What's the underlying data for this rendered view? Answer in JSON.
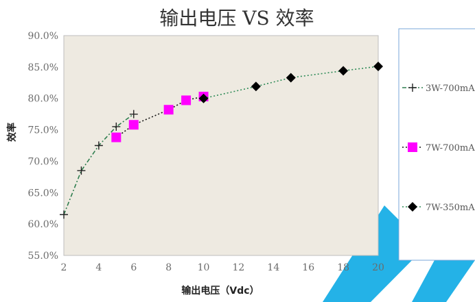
{
  "chart_data": {
    "type": "line",
    "title": "输出电压 VS 效率",
    "xlabel": "输出电压（Vdc）",
    "ylabel": "效率",
    "xlim": [
      2,
      20
    ],
    "ylim": [
      55,
      90
    ],
    "xticks": [
      2,
      4,
      6,
      8,
      10,
      12,
      14,
      16,
      18,
      20
    ],
    "yticks": [
      55,
      60,
      65,
      70,
      75,
      80,
      85,
      90
    ],
    "ytick_labels": [
      "55.0%",
      "60.0%",
      "65.0%",
      "70.0%",
      "75.0%",
      "80.0%",
      "85.0%",
      "90.0%"
    ],
    "xtick_labels": [
      "2",
      "4",
      "6",
      "8",
      "10",
      "12",
      "14",
      "16",
      "18",
      "20"
    ],
    "plot_background": "#eeeae1",
    "legend_position": "right",
    "series": [
      {
        "name": "3W-700mA",
        "marker": "plus",
        "color": "#2e7d4f",
        "marker_color": "#222222",
        "line_style": "dash-dot",
        "points": [
          [
            2,
            61.5
          ],
          [
            3,
            68.5
          ],
          [
            4,
            72.5
          ],
          [
            5,
            75.5
          ],
          [
            6,
            77.5
          ]
        ]
      },
      {
        "name": "7W-700mA",
        "marker": "square",
        "color": "#111111",
        "marker_color": "#ff00ff",
        "line_style": "dotted",
        "points": [
          [
            5,
            73.8
          ],
          [
            6,
            75.8
          ],
          [
            8,
            78.2
          ],
          [
            9,
            79.7
          ],
          [
            10,
            80.3
          ]
        ]
      },
      {
        "name": "7W-350mA",
        "marker": "diamond",
        "color": "#2e8b57",
        "marker_color": "#000000",
        "line_style": "dotted",
        "points": [
          [
            10,
            80.0
          ],
          [
            13,
            81.9
          ],
          [
            15,
            83.3
          ],
          [
            18,
            84.4
          ],
          [
            20,
            85.1
          ]
        ]
      }
    ]
  }
}
